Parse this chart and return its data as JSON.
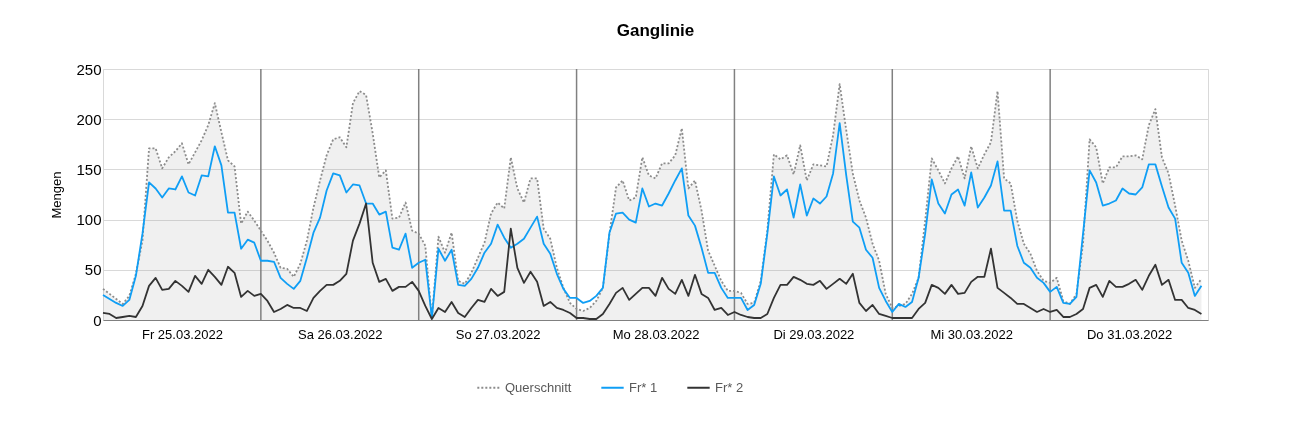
{
  "chart_data": {
    "type": "line",
    "title": "Ganglinie",
    "ylabel": "Mengen",
    "x": [
      "2022-03-25T00:00",
      "2022-03-25T01:00",
      "2022-03-25T02:00",
      "2022-03-25T03:00",
      "2022-03-25T04:00",
      "2022-03-25T05:00",
      "2022-03-25T06:00",
      "2022-03-25T07:00",
      "2022-03-25T08:00",
      "2022-03-25T09:00",
      "2022-03-25T10:00",
      "2022-03-25T11:00",
      "2022-03-25T12:00",
      "2022-03-25T13:00",
      "2022-03-25T14:00",
      "2022-03-25T15:00",
      "2022-03-25T16:00",
      "2022-03-25T17:00",
      "2022-03-25T18:00",
      "2022-03-25T19:00",
      "2022-03-25T20:00",
      "2022-03-25T21:00",
      "2022-03-25T22:00",
      "2022-03-25T23:00",
      "2022-03-26T00:00",
      "2022-03-26T01:00",
      "2022-03-26T02:00",
      "2022-03-26T03:00",
      "2022-03-26T04:00",
      "2022-03-26T05:00",
      "2022-03-26T06:00",
      "2022-03-26T07:00",
      "2022-03-26T08:00",
      "2022-03-26T09:00",
      "2022-03-26T10:00",
      "2022-03-26T11:00",
      "2022-03-26T12:00",
      "2022-03-26T13:00",
      "2022-03-26T14:00",
      "2022-03-26T15:00",
      "2022-03-26T16:00",
      "2022-03-26T17:00",
      "2022-03-26T18:00",
      "2022-03-26T19:00",
      "2022-03-26T20:00",
      "2022-03-26T21:00",
      "2022-03-26T22:00",
      "2022-03-26T23:00",
      "2022-03-27T00:00",
      "2022-03-27T01:00",
      "2022-03-27T02:00",
      "2022-03-27T03:00",
      "2022-03-27T04:00",
      "2022-03-27T05:00",
      "2022-03-27T06:00",
      "2022-03-27T07:00",
      "2022-03-27T08:00",
      "2022-03-27T09:00",
      "2022-03-27T10:00",
      "2022-03-27T11:00",
      "2022-03-27T12:00",
      "2022-03-27T13:00",
      "2022-03-27T14:00",
      "2022-03-27T15:00",
      "2022-03-27T16:00",
      "2022-03-27T17:00",
      "2022-03-27T18:00",
      "2022-03-27T19:00",
      "2022-03-27T20:00",
      "2022-03-27T21:00",
      "2022-03-27T22:00",
      "2022-03-27T23:00",
      "2022-03-28T00:00",
      "2022-03-28T01:00",
      "2022-03-28T02:00",
      "2022-03-28T03:00",
      "2022-03-28T04:00",
      "2022-03-28T05:00",
      "2022-03-28T06:00",
      "2022-03-28T07:00",
      "2022-03-28T08:00",
      "2022-03-28T09:00",
      "2022-03-28T10:00",
      "2022-03-28T11:00",
      "2022-03-28T12:00",
      "2022-03-28T13:00",
      "2022-03-28T14:00",
      "2022-03-28T15:00",
      "2022-03-28T16:00",
      "2022-03-28T17:00",
      "2022-03-28T18:00",
      "2022-03-28T19:00",
      "2022-03-28T20:00",
      "2022-03-28T21:00",
      "2022-03-28T22:00",
      "2022-03-28T23:00",
      "2022-03-29T00:00",
      "2022-03-29T01:00",
      "2022-03-29T02:00",
      "2022-03-29T03:00",
      "2022-03-29T04:00",
      "2022-03-29T05:00",
      "2022-03-29T06:00",
      "2022-03-29T07:00",
      "2022-03-29T08:00",
      "2022-03-29T09:00",
      "2022-03-29T10:00",
      "2022-03-29T11:00",
      "2022-03-29T12:00",
      "2022-03-29T13:00",
      "2022-03-29T14:00",
      "2022-03-29T15:00",
      "2022-03-29T16:00",
      "2022-03-29T17:00",
      "2022-03-29T18:00",
      "2022-03-29T19:00",
      "2022-03-29T20:00",
      "2022-03-29T21:00",
      "2022-03-29T22:00",
      "2022-03-29T23:00",
      "2022-03-30T00:00",
      "2022-03-30T01:00",
      "2022-03-30T02:00",
      "2022-03-30T03:00",
      "2022-03-30T04:00",
      "2022-03-30T05:00",
      "2022-03-30T06:00",
      "2022-03-30T07:00",
      "2022-03-30T08:00",
      "2022-03-30T09:00",
      "2022-03-30T10:00",
      "2022-03-30T11:00",
      "2022-03-30T12:00",
      "2022-03-30T13:00",
      "2022-03-30T14:00",
      "2022-03-30T15:00",
      "2022-03-30T16:00",
      "2022-03-30T17:00",
      "2022-03-30T18:00",
      "2022-03-30T19:00",
      "2022-03-30T20:00",
      "2022-03-30T21:00",
      "2022-03-30T22:00",
      "2022-03-30T23:00",
      "2022-03-31T00:00",
      "2022-03-31T01:00",
      "2022-03-31T02:00",
      "2022-03-31T03:00",
      "2022-03-31T04:00",
      "2022-03-31T05:00",
      "2022-03-31T06:00",
      "2022-03-31T07:00",
      "2022-03-31T08:00",
      "2022-03-31T09:00",
      "2022-03-31T10:00",
      "2022-03-31T11:00",
      "2022-03-31T12:00",
      "2022-03-31T13:00",
      "2022-03-31T14:00",
      "2022-03-31T15:00",
      "2022-03-31T16:00",
      "2022-03-31T17:00",
      "2022-03-31T18:00",
      "2022-03-31T19:00",
      "2022-03-31T20:00",
      "2022-03-31T21:00",
      "2022-03-31T22:00",
      "2022-03-31T23:00"
    ],
    "xlim": [
      "2022-03-25T00:00",
      "2022-04-01T00:00"
    ],
    "xticks": [
      {
        "value": "2022-03-25T12:00",
        "label": "Fr 25.03.2022"
      },
      {
        "value": "2022-03-26T12:00",
        "label": "Sa 26.03.2022"
      },
      {
        "value": "2022-03-27T12:00",
        "label": "So 27.03.2022"
      },
      {
        "value": "2022-03-28T12:00",
        "label": "Mo 28.03.2022"
      },
      {
        "value": "2022-03-29T12:00",
        "label": "Di 29.03.2022"
      },
      {
        "value": "2022-03-30T12:00",
        "label": "Mi 30.03.2022"
      },
      {
        "value": "2022-03-31T12:00",
        "label": "Do 31.03.2022"
      }
    ],
    "ylim": [
      0,
      250
    ],
    "yticks": [
      0,
      50,
      100,
      150,
      200,
      250
    ],
    "grid": "y",
    "legend": "bottom",
    "ref_lines": [
      {
        "axis": "x",
        "value": "2022-03-26T00:00",
        "color": "#808080"
      },
      {
        "axis": "x",
        "value": "2022-03-27T00:00",
        "color": "#808080"
      },
      {
        "axis": "x",
        "value": "2022-03-28T00:00",
        "color": "#808080"
      },
      {
        "axis": "x",
        "value": "2022-03-29T00:00",
        "color": "#808080"
      },
      {
        "axis": "x",
        "value": "2022-03-30T00:00",
        "color": "#808080"
      },
      {
        "axis": "x",
        "value": "2022-03-31T00:00",
        "color": "#808080"
      }
    ],
    "series": [
      {
        "name": "Querschnitt",
        "type": "area",
        "line_style": "dotted",
        "color": "#8c8c8c",
        "values": [
          31,
          26,
          21,
          16,
          24,
          46,
          79,
          171,
          171,
          151,
          162,
          168,
          176,
          155,
          167,
          179,
          194,
          216,
          187,
          159,
          153,
          96,
          108,
          99,
          89,
          79,
          67,
          52,
          51,
          43,
          56,
          79,
          112,
          139,
          164,
          180,
          182,
          172,
          216,
          228,
          224,
          186,
          142,
          149,
          101,
          102,
          117,
          89,
          86,
          74,
          2,
          83,
          67,
          87,
          39,
          36,
          47,
          62,
          77,
          106,
          117,
          111,
          162,
          131,
          117,
          141,
          141,
          91,
          81,
          52,
          32,
          17,
          11,
          9,
          12,
          19,
          32,
          86,
          132,
          139,
          119,
          122,
          162,
          144,
          141,
          156,
          156,
          164,
          191,
          131,
          139,
          109,
          69,
          54,
          39,
          29,
          29,
          27,
          16,
          17,
          39,
          89,
          165,
          160,
          164,
          145,
          174,
          139,
          155,
          154,
          153,
          184,
          235,
          189,
          146,
          119,
          102,
          76,
          59,
          26,
          12,
          14,
          16,
          26,
          42,
          99,
          161,
          149,
          136,
          151,
          163,
          141,
          173,
          151,
          165,
          177,
          228,
          141,
          136,
          99,
          76,
          66,
          49,
          39,
          37,
          42,
          19,
          16,
          26,
          76,
          180,
          172,
          136,
          152,
          152,
          163,
          163,
          164,
          160,
          194,
          210,
          162,
          146,
          114,
          79,
          59,
          32,
          41
        ]
      },
      {
        "name": "Fr* 1",
        "line_style": "solid",
        "color": "#0f9ef5",
        "values": [
          25,
          21,
          17,
          14,
          20,
          44,
          86,
          137,
          131,
          122,
          131,
          130,
          143,
          127,
          124,
          144,
          143,
          173,
          154,
          107,
          107,
          71,
          80,
          77,
          59,
          59,
          58,
          42,
          36,
          31,
          39,
          62,
          87,
          102,
          129,
          146,
          144,
          127,
          135,
          134,
          116,
          116,
          105,
          108,
          72,
          70,
          86,
          52,
          57,
          60,
          2,
          71,
          59,
          70,
          35,
          34,
          41,
          52,
          67,
          76,
          95,
          82,
          72,
          76,
          81,
          92,
          103,
          76,
          66,
          46,
          31,
          22,
          22,
          17,
          19,
          24,
          32,
          87,
          106,
          107,
          100,
          97,
          131,
          113,
          116,
          114,
          126,
          139,
          151,
          104,
          94,
          72,
          47,
          47,
          32,
          22,
          22,
          22,
          10,
          15,
          36,
          86,
          143,
          124,
          130,
          102,
          135,
          104,
          121,
          116,
          123,
          146,
          196,
          144,
          98,
          92,
          70,
          62,
          32,
          19,
          8,
          16,
          13,
          18,
          42,
          86,
          140,
          116,
          106,
          125,
          130,
          114,
          147,
          112,
          122,
          134,
          158,
          109,
          109,
          74,
          57,
          52,
          42,
          37,
          28,
          33,
          17,
          16,
          23,
          86,
          149,
          137,
          114,
          116,
          119,
          131,
          126,
          125,
          132,
          155,
          155,
          133,
          112,
          101,
          57,
          47,
          24,
          34
        ]
      },
      {
        "name": "Fr* 2",
        "line_style": "solid",
        "color": "#333333",
        "values": [
          7,
          6,
          2,
          3,
          4,
          3,
          14,
          34,
          42,
          30,
          31,
          39,
          34,
          28,
          44,
          36,
          50,
          43,
          35,
          53,
          47,
          23,
          29,
          24,
          26,
          19,
          8,
          11,
          15,
          12,
          12,
          9,
          22,
          29,
          35,
          35,
          39,
          46,
          79,
          96,
          116,
          57,
          38,
          41,
          29,
          33,
          33,
          38,
          29,
          14,
          1,
          12,
          8,
          18,
          7,
          3,
          12,
          20,
          18,
          31,
          24,
          28,
          91,
          52,
          37,
          48,
          38,
          14,
          18,
          12,
          10,
          7,
          2,
          2,
          1,
          1,
          6,
          16,
          27,
          32,
          20,
          26,
          32,
          32,
          24,
          42,
          31,
          26,
          40,
          24,
          45,
          26,
          22,
          10,
          12,
          5,
          8,
          5,
          3,
          2,
          2,
          6,
          22,
          35,
          35,
          43,
          40,
          36,
          35,
          39,
          31,
          36,
          41,
          36,
          46,
          17,
          9,
          15,
          6,
          4,
          2,
          2,
          2,
          2,
          11,
          17,
          35,
          32,
          26,
          35,
          26,
          27,
          38,
          43,
          43,
          71,
          32,
          27,
          22,
          16,
          16,
          12,
          8,
          11,
          8,
          10,
          3,
          3,
          6,
          11,
          32,
          35,
          23,
          39,
          33,
          33,
          36,
          40,
          30,
          44,
          55,
          35,
          40,
          20,
          20,
          12,
          10,
          6
        ]
      }
    ]
  }
}
